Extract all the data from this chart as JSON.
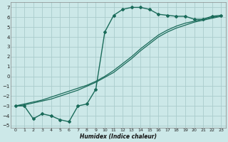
{
  "xlabel": "Humidex (Indice chaleur)",
  "bg_color": "#cce8e8",
  "grid_color": "#aacccc",
  "line_color": "#1a6b5a",
  "xlim": [
    -0.5,
    23.5
  ],
  "ylim": [
    -5.2,
    7.5
  ],
  "yticks": [
    -5,
    -4,
    -3,
    -2,
    -1,
    0,
    1,
    2,
    3,
    4,
    5,
    6,
    7
  ],
  "xticks": [
    0,
    1,
    2,
    3,
    4,
    5,
    6,
    7,
    8,
    9,
    10,
    11,
    12,
    13,
    14,
    15,
    16,
    17,
    18,
    19,
    20,
    21,
    22,
    23
  ],
  "curve1_x": [
    0,
    1,
    2,
    3,
    4,
    5,
    6,
    7,
    8,
    9,
    10,
    11,
    12,
    13,
    14,
    15,
    16,
    17,
    18,
    19,
    20,
    21,
    22,
    23
  ],
  "curve1_y": [
    -3.0,
    -3.0,
    -4.3,
    -3.8,
    -4.0,
    -4.4,
    -4.6,
    -3.0,
    -2.8,
    -1.3,
    4.5,
    6.2,
    6.8,
    7.0,
    7.0,
    6.8,
    6.3,
    6.2,
    6.1,
    6.1,
    5.8,
    5.8,
    6.1,
    6.2
  ],
  "curve2_x": [
    0,
    1,
    2,
    3,
    4,
    5,
    6,
    7,
    8,
    9,
    10,
    11,
    12,
    13,
    14,
    15,
    16,
    17,
    18,
    19,
    20,
    21,
    22,
    23
  ],
  "curve2_y": [
    -3.0,
    -2.8,
    -2.6,
    -2.4,
    -2.1,
    -1.8,
    -1.5,
    -1.2,
    -0.9,
    -0.5,
    0.0,
    0.6,
    1.3,
    2.0,
    2.8,
    3.5,
    4.2,
    4.7,
    5.1,
    5.4,
    5.6,
    5.8,
    6.0,
    6.1
  ],
  "curve3_x": [
    0,
    1,
    2,
    3,
    4,
    5,
    6,
    7,
    8,
    9,
    10,
    11,
    12,
    13,
    14,
    15,
    16,
    17,
    18,
    19,
    20,
    21,
    22,
    23
  ],
  "curve3_y": [
    -3.0,
    -2.9,
    -2.7,
    -2.5,
    -2.3,
    -2.0,
    -1.7,
    -1.4,
    -1.0,
    -0.6,
    -0.1,
    0.4,
    1.1,
    1.8,
    2.6,
    3.3,
    4.0,
    4.5,
    4.9,
    5.2,
    5.5,
    5.7,
    5.9,
    6.1
  ]
}
